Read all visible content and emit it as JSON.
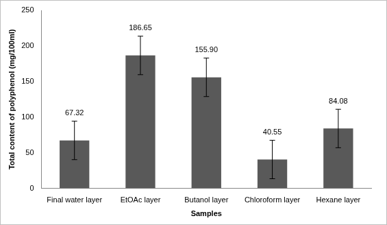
{
  "chart_data": {
    "type": "bar",
    "x_label": "Samples",
    "y_label": "Total content of polyphenol (mg/100ml)",
    "categories": [
      "Final water layer",
      "EtOAc layer",
      "Butanol layer",
      "Chloroform layer",
      "Hexane layer"
    ],
    "values": [
      67.32,
      186.65,
      155.9,
      40.55,
      84.08
    ],
    "value_labels": [
      "67.32",
      "186.65",
      "155.90",
      "40.55",
      "84.08"
    ],
    "errors": [
      27,
      27,
      27,
      27,
      27
    ],
    "color": "#595959",
    "ylim": [
      0,
      250
    ],
    "yticks": [
      0,
      50,
      100,
      150,
      200,
      250
    ],
    "grid": false,
    "data_labels": true
  }
}
